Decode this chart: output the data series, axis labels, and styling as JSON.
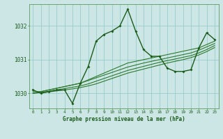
{
  "title": "Graphe pression niveau de la mer (hPa)",
  "background_color": "#cce5e5",
  "grid_color": "#99cccc",
  "line_color_dark": "#1a5c1a",
  "line_color_mid": "#2d7a2d",
  "xlim": [
    -0.5,
    23.5
  ],
  "ylim": [
    1029.55,
    1032.65
  ],
  "yticks": [
    1030,
    1031,
    1032
  ],
  "xtick_labels": [
    "0",
    "1",
    "2",
    "3",
    "4",
    "5",
    "6",
    "7",
    "8",
    "9",
    "10",
    "11",
    "12",
    "13",
    "14",
    "15",
    "16",
    "17",
    "18",
    "19",
    "20",
    "21",
    "22",
    "23"
  ],
  "series_jagged": [
    1030.1,
    1030.0,
    1030.05,
    1030.1,
    1030.1,
    1029.7,
    1030.3,
    1030.8,
    1031.55,
    1031.75,
    1031.85,
    1032.0,
    1032.5,
    1031.85,
    1031.3,
    1031.1,
    1031.1,
    1030.75,
    1030.65,
    1030.65,
    1030.7,
    1031.35,
    1031.8,
    1031.6
  ],
  "series_trend1": [
    1030.05,
    1030.05,
    1030.1,
    1030.15,
    1030.2,
    1030.25,
    1030.3,
    1030.4,
    1030.5,
    1030.6,
    1030.7,
    1030.8,
    1030.9,
    1030.95,
    1031.0,
    1031.05,
    1031.1,
    1031.15,
    1031.2,
    1031.25,
    1031.3,
    1031.35,
    1031.45,
    1031.55
  ],
  "series_trend2": [
    1030.0,
    1030.05,
    1030.1,
    1030.15,
    1030.2,
    1030.25,
    1030.3,
    1030.38,
    1030.46,
    1030.54,
    1030.62,
    1030.7,
    1030.78,
    1030.84,
    1030.9,
    1030.95,
    1031.0,
    1031.05,
    1031.1,
    1031.15,
    1031.2,
    1031.28,
    1031.38,
    1031.48
  ],
  "series_trend3": [
    1030.0,
    1030.03,
    1030.06,
    1030.1,
    1030.14,
    1030.18,
    1030.22,
    1030.28,
    1030.36,
    1030.44,
    1030.52,
    1030.6,
    1030.68,
    1030.74,
    1030.8,
    1030.86,
    1030.92,
    1030.97,
    1031.02,
    1031.07,
    1031.12,
    1031.2,
    1031.3,
    1031.42
  ],
  "series_trend4": [
    1030.0,
    1030.02,
    1030.04,
    1030.07,
    1030.1,
    1030.13,
    1030.17,
    1030.22,
    1030.28,
    1030.36,
    1030.44,
    1030.52,
    1030.6,
    1030.66,
    1030.72,
    1030.78,
    1030.84,
    1030.9,
    1030.95,
    1031.0,
    1031.06,
    1031.14,
    1031.24,
    1031.36
  ]
}
